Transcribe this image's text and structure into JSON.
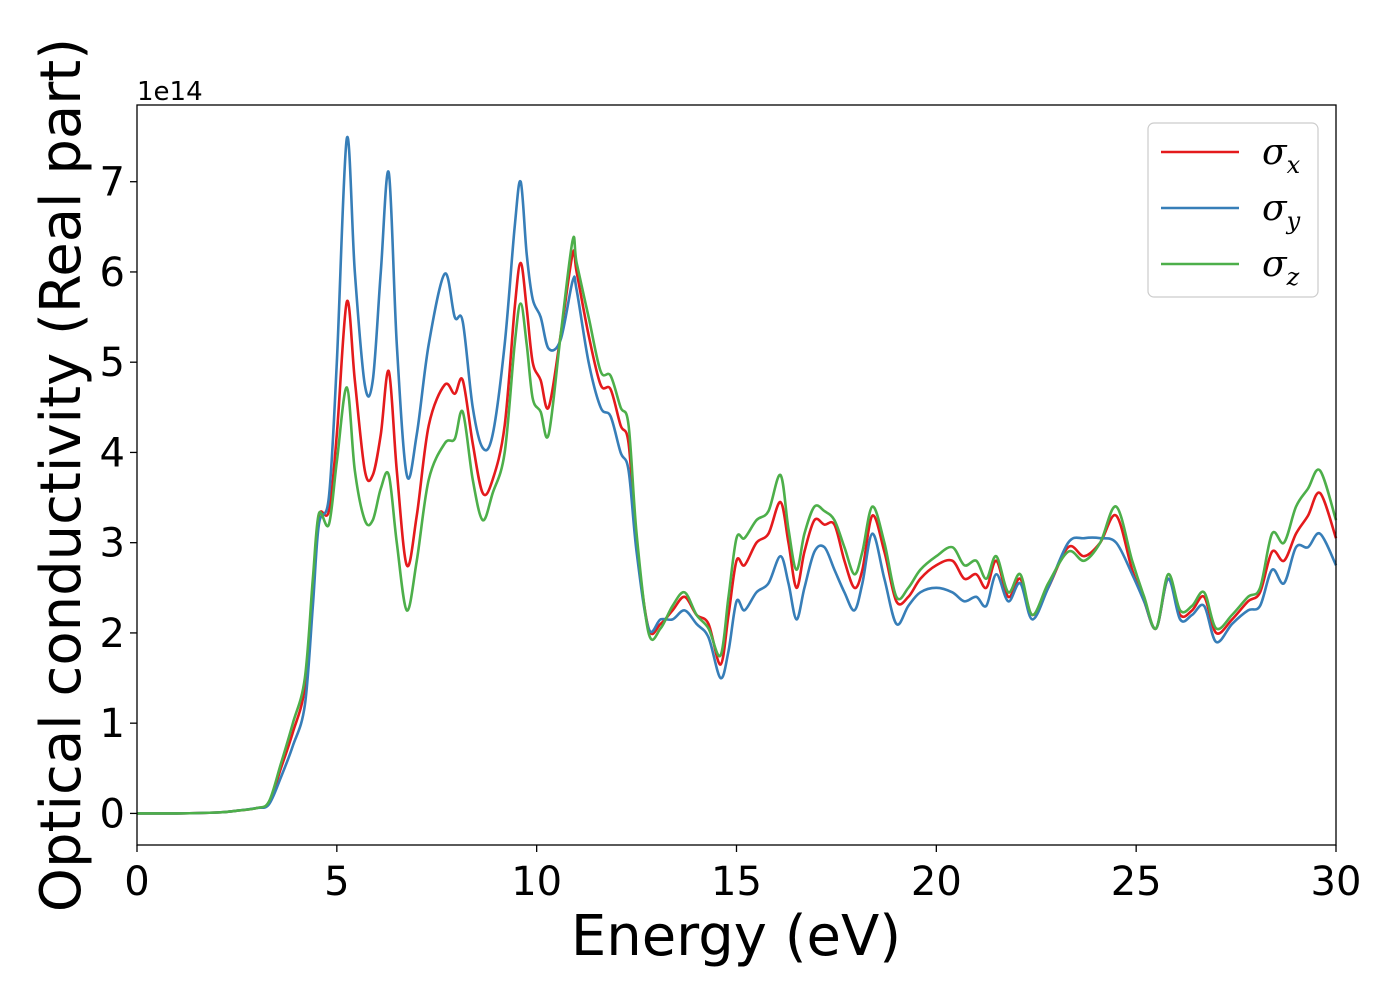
{
  "chart_data": {
    "type": "line",
    "title": "",
    "xlabel": "Energy (eV)",
    "ylabel": "Optical conductivity (Real part)",
    "y_offset_label": "1e14",
    "xlim": [
      0,
      30
    ],
    "ylim": [
      -0.35,
      7.85
    ],
    "x_ticks": [
      0,
      5,
      10,
      15,
      20,
      25,
      30
    ],
    "y_ticks": [
      0,
      1,
      2,
      3,
      4,
      5,
      6,
      7
    ],
    "grid": false,
    "legend_position": "top-right",
    "series": [
      {
        "name": "σ",
        "subscript": "x",
        "color": "#e41a1c",
        "points": [
          [
            0,
            0
          ],
          [
            1,
            0
          ],
          [
            2,
            0.01
          ],
          [
            2.5,
            0.03
          ],
          [
            3,
            0.06
          ],
          [
            3.3,
            0.12
          ],
          [
            3.6,
            0.5
          ],
          [
            3.9,
            0.9
          ],
          [
            4.2,
            1.4
          ],
          [
            4.4,
            2.5
          ],
          [
            4.55,
            3.3
          ],
          [
            4.8,
            3.35
          ],
          [
            5.0,
            4.2
          ],
          [
            5.25,
            5.67
          ],
          [
            5.45,
            4.8
          ],
          [
            5.7,
            3.8
          ],
          [
            5.9,
            3.75
          ],
          [
            6.1,
            4.2
          ],
          [
            6.3,
            4.9
          ],
          [
            6.5,
            3.8
          ],
          [
            6.75,
            2.75
          ],
          [
            7.0,
            3.3
          ],
          [
            7.3,
            4.3
          ],
          [
            7.7,
            4.75
          ],
          [
            7.95,
            4.65
          ],
          [
            8.15,
            4.8
          ],
          [
            8.4,
            4.1
          ],
          [
            8.65,
            3.55
          ],
          [
            8.9,
            3.7
          ],
          [
            9.2,
            4.3
          ],
          [
            9.45,
            5.6
          ],
          [
            9.6,
            6.1
          ],
          [
            9.75,
            5.6
          ],
          [
            9.9,
            5.0
          ],
          [
            10.1,
            4.8
          ],
          [
            10.3,
            4.5
          ],
          [
            10.6,
            5.3
          ],
          [
            10.9,
            6.2
          ],
          [
            11.0,
            6.0
          ],
          [
            11.3,
            5.3
          ],
          [
            11.6,
            4.75
          ],
          [
            11.85,
            4.7
          ],
          [
            12.1,
            4.3
          ],
          [
            12.3,
            4.1
          ],
          [
            12.5,
            3.0
          ],
          [
            12.8,
            2.05
          ],
          [
            13.1,
            2.1
          ],
          [
            13.4,
            2.25
          ],
          [
            13.7,
            2.4
          ],
          [
            14.0,
            2.2
          ],
          [
            14.3,
            2.1
          ],
          [
            14.6,
            1.65
          ],
          [
            14.8,
            2.2
          ],
          [
            15.0,
            2.8
          ],
          [
            15.2,
            2.75
          ],
          [
            15.5,
            3.0
          ],
          [
            15.8,
            3.1
          ],
          [
            16.1,
            3.45
          ],
          [
            16.3,
            3.0
          ],
          [
            16.5,
            2.5
          ],
          [
            16.7,
            2.9
          ],
          [
            16.95,
            3.25
          ],
          [
            17.2,
            3.2
          ],
          [
            17.45,
            3.2
          ],
          [
            17.7,
            2.8
          ],
          [
            17.95,
            2.5
          ],
          [
            18.15,
            2.7
          ],
          [
            18.4,
            3.3
          ],
          [
            18.7,
            2.9
          ],
          [
            19.0,
            2.35
          ],
          [
            19.3,
            2.4
          ],
          [
            19.6,
            2.6
          ],
          [
            20.0,
            2.75
          ],
          [
            20.4,
            2.8
          ],
          [
            20.7,
            2.6
          ],
          [
            21.0,
            2.65
          ],
          [
            21.25,
            2.5
          ],
          [
            21.5,
            2.8
          ],
          [
            21.8,
            2.4
          ],
          [
            22.1,
            2.6
          ],
          [
            22.4,
            2.2
          ],
          [
            22.8,
            2.5
          ],
          [
            23.3,
            2.95
          ],
          [
            23.7,
            2.85
          ],
          [
            24.1,
            3.0
          ],
          [
            24.5,
            3.3
          ],
          [
            24.9,
            2.7
          ],
          [
            25.2,
            2.35
          ],
          [
            25.5,
            2.05
          ],
          [
            25.8,
            2.6
          ],
          [
            26.1,
            2.2
          ],
          [
            26.4,
            2.25
          ],
          [
            26.7,
            2.4
          ],
          [
            27.0,
            2.0
          ],
          [
            27.4,
            2.15
          ],
          [
            27.8,
            2.35
          ],
          [
            28.1,
            2.45
          ],
          [
            28.4,
            2.9
          ],
          [
            28.7,
            2.8
          ],
          [
            29.0,
            3.1
          ],
          [
            29.3,
            3.3
          ],
          [
            29.6,
            3.55
          ],
          [
            30.0,
            3.05
          ]
        ]
      },
      {
        "name": "σ",
        "subscript": "y",
        "color": "#377eb8",
        "points": [
          [
            0,
            0
          ],
          [
            1,
            0
          ],
          [
            2,
            0.01
          ],
          [
            2.5,
            0.03
          ],
          [
            3,
            0.06
          ],
          [
            3.3,
            0.1
          ],
          [
            3.6,
            0.4
          ],
          [
            3.9,
            0.75
          ],
          [
            4.2,
            1.2
          ],
          [
            4.4,
            2.3
          ],
          [
            4.55,
            3.2
          ],
          [
            4.8,
            3.5
          ],
          [
            5.0,
            5.0
          ],
          [
            5.25,
            7.48
          ],
          [
            5.45,
            6.0
          ],
          [
            5.7,
            4.75
          ],
          [
            5.9,
            4.8
          ],
          [
            6.1,
            6.0
          ],
          [
            6.3,
            7.1
          ],
          [
            6.5,
            5.2
          ],
          [
            6.75,
            3.75
          ],
          [
            7.0,
            4.2
          ],
          [
            7.3,
            5.2
          ],
          [
            7.7,
            5.98
          ],
          [
            7.95,
            5.5
          ],
          [
            8.15,
            5.45
          ],
          [
            8.4,
            4.5
          ],
          [
            8.65,
            4.05
          ],
          [
            8.9,
            4.2
          ],
          [
            9.2,
            5.2
          ],
          [
            9.45,
            6.5
          ],
          [
            9.6,
            7.0
          ],
          [
            9.75,
            6.2
          ],
          [
            9.9,
            5.7
          ],
          [
            10.1,
            5.5
          ],
          [
            10.3,
            5.15
          ],
          [
            10.6,
            5.25
          ],
          [
            10.9,
            5.9
          ],
          [
            11.0,
            5.8
          ],
          [
            11.3,
            5.0
          ],
          [
            11.6,
            4.5
          ],
          [
            11.85,
            4.4
          ],
          [
            12.1,
            4.0
          ],
          [
            12.3,
            3.8
          ],
          [
            12.5,
            2.9
          ],
          [
            12.8,
            2.05
          ],
          [
            13.1,
            2.15
          ],
          [
            13.4,
            2.15
          ],
          [
            13.7,
            2.25
          ],
          [
            14.0,
            2.1
          ],
          [
            14.3,
            1.95
          ],
          [
            14.6,
            1.5
          ],
          [
            14.8,
            1.8
          ],
          [
            15.0,
            2.35
          ],
          [
            15.2,
            2.25
          ],
          [
            15.5,
            2.45
          ],
          [
            15.8,
            2.55
          ],
          [
            16.1,
            2.85
          ],
          [
            16.3,
            2.55
          ],
          [
            16.5,
            2.15
          ],
          [
            16.7,
            2.5
          ],
          [
            16.95,
            2.9
          ],
          [
            17.2,
            2.95
          ],
          [
            17.45,
            2.7
          ],
          [
            17.7,
            2.45
          ],
          [
            17.95,
            2.25
          ],
          [
            18.15,
            2.55
          ],
          [
            18.4,
            3.1
          ],
          [
            18.7,
            2.6
          ],
          [
            19.0,
            2.1
          ],
          [
            19.3,
            2.3
          ],
          [
            19.6,
            2.45
          ],
          [
            20.0,
            2.5
          ],
          [
            20.4,
            2.45
          ],
          [
            20.7,
            2.35
          ],
          [
            21.0,
            2.4
          ],
          [
            21.25,
            2.3
          ],
          [
            21.5,
            2.65
          ],
          [
            21.8,
            2.35
          ],
          [
            22.1,
            2.55
          ],
          [
            22.4,
            2.15
          ],
          [
            22.8,
            2.5
          ],
          [
            23.3,
            3.0
          ],
          [
            23.7,
            3.05
          ],
          [
            24.1,
            3.05
          ],
          [
            24.5,
            3.0
          ],
          [
            24.9,
            2.65
          ],
          [
            25.2,
            2.35
          ],
          [
            25.5,
            2.05
          ],
          [
            25.8,
            2.6
          ],
          [
            26.1,
            2.15
          ],
          [
            26.4,
            2.2
          ],
          [
            26.7,
            2.3
          ],
          [
            27.0,
            1.9
          ],
          [
            27.4,
            2.1
          ],
          [
            27.8,
            2.25
          ],
          [
            28.1,
            2.3
          ],
          [
            28.4,
            2.7
          ],
          [
            28.7,
            2.55
          ],
          [
            29.0,
            2.95
          ],
          [
            29.3,
            2.95
          ],
          [
            29.6,
            3.1
          ],
          [
            30.0,
            2.75
          ]
        ]
      },
      {
        "name": "σ",
        "subscript": "z",
        "color": "#4daf4a",
        "points": [
          [
            0,
            0
          ],
          [
            1,
            0
          ],
          [
            2,
            0.01
          ],
          [
            2.5,
            0.03
          ],
          [
            3,
            0.06
          ],
          [
            3.3,
            0.13
          ],
          [
            3.6,
            0.55
          ],
          [
            3.9,
            1.0
          ],
          [
            4.2,
            1.5
          ],
          [
            4.4,
            2.6
          ],
          [
            4.55,
            3.32
          ],
          [
            4.8,
            3.2
          ],
          [
            5.0,
            3.9
          ],
          [
            5.25,
            4.72
          ],
          [
            5.45,
            3.8
          ],
          [
            5.7,
            3.25
          ],
          [
            5.9,
            3.25
          ],
          [
            6.1,
            3.6
          ],
          [
            6.3,
            3.75
          ],
          [
            6.5,
            3.0
          ],
          [
            6.75,
            2.25
          ],
          [
            7.0,
            2.8
          ],
          [
            7.3,
            3.7
          ],
          [
            7.7,
            4.1
          ],
          [
            7.95,
            4.15
          ],
          [
            8.15,
            4.45
          ],
          [
            8.4,
            3.7
          ],
          [
            8.65,
            3.25
          ],
          [
            8.9,
            3.55
          ],
          [
            9.2,
            4.0
          ],
          [
            9.45,
            5.2
          ],
          [
            9.6,
            5.65
          ],
          [
            9.75,
            5.2
          ],
          [
            9.9,
            4.6
          ],
          [
            10.1,
            4.45
          ],
          [
            10.3,
            4.2
          ],
          [
            10.6,
            5.3
          ],
          [
            10.9,
            6.35
          ],
          [
            11.0,
            6.1
          ],
          [
            11.3,
            5.5
          ],
          [
            11.6,
            4.9
          ],
          [
            11.85,
            4.85
          ],
          [
            12.1,
            4.5
          ],
          [
            12.3,
            4.3
          ],
          [
            12.5,
            3.1
          ],
          [
            12.8,
            2.0
          ],
          [
            13.1,
            2.05
          ],
          [
            13.4,
            2.3
          ],
          [
            13.7,
            2.45
          ],
          [
            14.0,
            2.2
          ],
          [
            14.3,
            2.05
          ],
          [
            14.6,
            1.75
          ],
          [
            14.8,
            2.4
          ],
          [
            15.0,
            3.05
          ],
          [
            15.2,
            3.05
          ],
          [
            15.5,
            3.25
          ],
          [
            15.8,
            3.35
          ],
          [
            16.1,
            3.75
          ],
          [
            16.3,
            3.15
          ],
          [
            16.5,
            2.7
          ],
          [
            16.7,
            3.1
          ],
          [
            16.95,
            3.4
          ],
          [
            17.2,
            3.35
          ],
          [
            17.45,
            3.25
          ],
          [
            17.7,
            2.95
          ],
          [
            17.95,
            2.65
          ],
          [
            18.15,
            2.9
          ],
          [
            18.4,
            3.4
          ],
          [
            18.7,
            3.0
          ],
          [
            19.0,
            2.4
          ],
          [
            19.3,
            2.5
          ],
          [
            19.6,
            2.7
          ],
          [
            20.0,
            2.85
          ],
          [
            20.4,
            2.95
          ],
          [
            20.7,
            2.75
          ],
          [
            21.0,
            2.8
          ],
          [
            21.25,
            2.6
          ],
          [
            21.5,
            2.85
          ],
          [
            21.8,
            2.45
          ],
          [
            22.1,
            2.65
          ],
          [
            22.4,
            2.2
          ],
          [
            22.8,
            2.55
          ],
          [
            23.3,
            2.9
          ],
          [
            23.7,
            2.8
          ],
          [
            24.1,
            3.0
          ],
          [
            24.5,
            3.4
          ],
          [
            24.9,
            2.8
          ],
          [
            25.2,
            2.4
          ],
          [
            25.5,
            2.05
          ],
          [
            25.8,
            2.65
          ],
          [
            26.1,
            2.25
          ],
          [
            26.4,
            2.3
          ],
          [
            26.7,
            2.45
          ],
          [
            27.0,
            2.05
          ],
          [
            27.4,
            2.2
          ],
          [
            27.8,
            2.4
          ],
          [
            28.1,
            2.5
          ],
          [
            28.4,
            3.1
          ],
          [
            28.7,
            3.0
          ],
          [
            29.0,
            3.4
          ],
          [
            29.3,
            3.6
          ],
          [
            29.6,
            3.8
          ],
          [
            30.0,
            3.25
          ]
        ]
      }
    ]
  }
}
